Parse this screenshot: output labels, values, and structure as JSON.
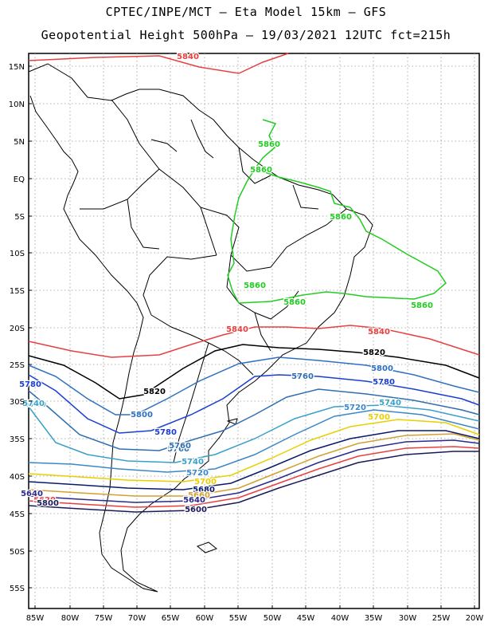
{
  "header": {
    "line1": "CPTEC/INPE/MCT –  Eta Model 15km – GFS",
    "line2": "Geopotential Height 500hPa – 19/03/2021 12UTC fct=215h"
  },
  "map": {
    "lat_labels": [
      "15N",
      "10N",
      "5N",
      "EQ",
      "5S",
      "10S",
      "15S",
      "20S",
      "25S",
      "30S",
      "35S",
      "40S",
      "45S",
      "50S",
      "55S"
    ],
    "lon_labels": [
      "85W",
      "80W",
      "75W",
      "70W",
      "65W",
      "60W",
      "55W",
      "50W",
      "45W",
      "40W",
      "35W",
      "30W",
      "25W",
      "20W"
    ],
    "lon_range": [
      -86,
      -20
    ],
    "lat_range": [
      -58,
      16
    ],
    "contour_labels": [
      {
        "text": "5840",
        "color": "#e84040"
      },
      {
        "text": "5860",
        "color": "#22cc22"
      },
      {
        "text": "5860",
        "color": "#22cc22"
      },
      {
        "text": "5860",
        "color": "#22cc22"
      },
      {
        "text": "5860",
        "color": "#22cc22"
      },
      {
        "text": "5860",
        "color": "#22cc22"
      },
      {
        "text": "5860",
        "color": "#22cc22"
      },
      {
        "text": "5840",
        "color": "#e84040"
      },
      {
        "text": "5840",
        "color": "#e84040"
      },
      {
        "text": "5820",
        "color": "#000000"
      },
      {
        "text": "5820",
        "color": "#000000"
      },
      {
        "text": "5800",
        "color": "#3070c0"
      },
      {
        "text": "5800",
        "color": "#3070c0"
      },
      {
        "text": "5780",
        "color": "#1a3fd0"
      },
      {
        "text": "5780",
        "color": "#1a3fd0"
      },
      {
        "text": "5780",
        "color": "#1a3fd0"
      },
      {
        "text": "5760",
        "color": "#2f6fb0"
      },
      {
        "text": "5760",
        "color": "#2f6fb0"
      },
      {
        "text": "5740",
        "color": "#3aa0c8"
      },
      {
        "text": "5740",
        "color": "#3aa0c8"
      },
      {
        "text": "5740",
        "color": "#3aa0c8"
      },
      {
        "text": "5720",
        "color": "#3a88c8"
      },
      {
        "text": "5720",
        "color": "#3a88c8"
      },
      {
        "text": "5700",
        "color": "#e8d000"
      },
      {
        "text": "5700",
        "color": "#e8d000"
      },
      {
        "text": "5680",
        "color": "#0a1a6a"
      },
      {
        "text": "5660",
        "color": "#d4a030"
      },
      {
        "text": "5640",
        "color": "#2a2a8a"
      },
      {
        "text": "5620",
        "color": "#e84040"
      },
      {
        "text": "5600",
        "color": "#1a1a5a"
      },
      {
        "text": "5800",
        "color": "#1a1a5a"
      },
      {
        "text": "5760",
        "color": "#2f6fb0"
      },
      {
        "text": "5740",
        "color": "#3aa0c8"
      },
      {
        "text": "5640",
        "color": "#2a2a8a"
      }
    ]
  }
}
